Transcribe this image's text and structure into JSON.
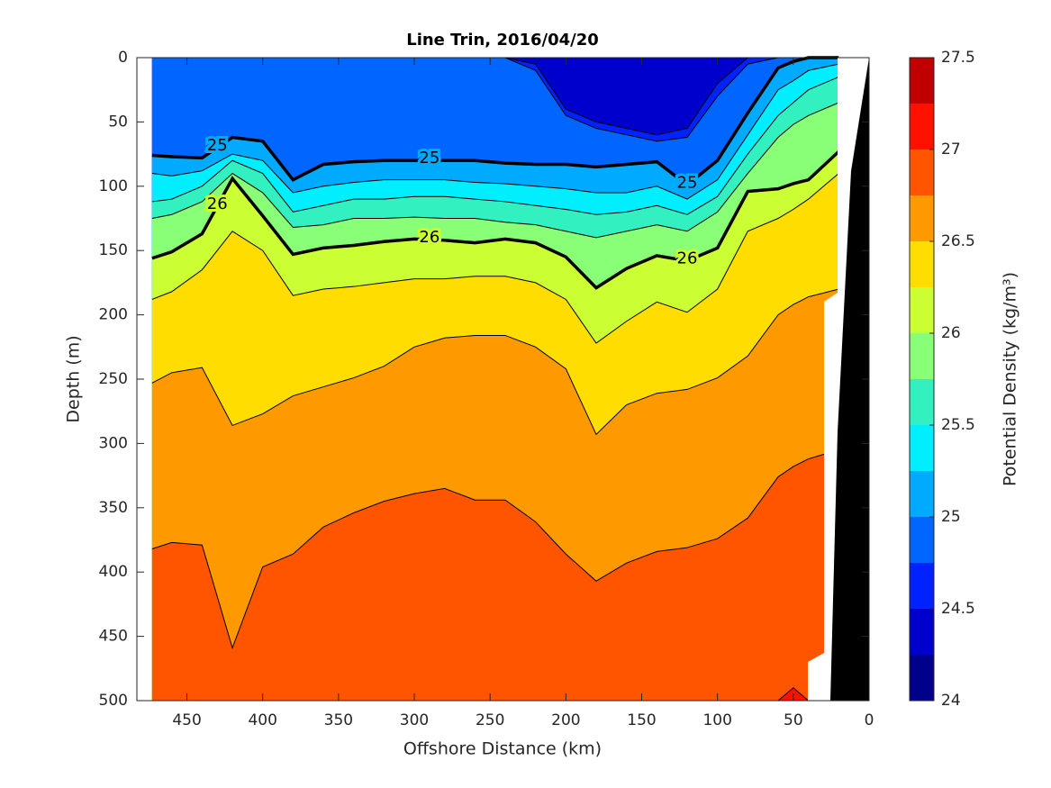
{
  "chart_data": {
    "type": "contour",
    "title": "Line Trin, 2016/04/20",
    "xlabel": "Offshore Distance (km)",
    "ylabel": "Depth (m)",
    "colorbar_label": "Potential Density (kg/m³)",
    "xlim": [
      483,
      0
    ],
    "xticks": [
      450,
      400,
      350,
      300,
      250,
      200,
      150,
      100,
      50,
      0
    ],
    "ylim": [
      0,
      500
    ],
    "yticks": [
      0,
      50,
      100,
      150,
      200,
      250,
      300,
      350,
      400,
      450,
      500
    ],
    "clim": [
      24,
      27.5
    ],
    "cticks": [
      24,
      24.5,
      25,
      25.5,
      26,
      26.5,
      27,
      27.5
    ],
    "colors": [
      "#00008b",
      "#0000cc",
      "#0022ff",
      "#0066ff",
      "#00aaff",
      "#00eeff",
      "#33f0c0",
      "#88ff77",
      "#ccff33",
      "#ffdd00",
      "#ff9900",
      "#ff5500",
      "#ff1100",
      "#c00000"
    ],
    "x": [
      473,
      460,
      440,
      420,
      400,
      380,
      360,
      340,
      320,
      300,
      280,
      260,
      240,
      220,
      200,
      180,
      160,
      140,
      120,
      100,
      80,
      60,
      50,
      40,
      20
    ],
    "contours": [
      {
        "level": 24.5,
        "depths": [
          0,
          0,
          0,
          0,
          0,
          0,
          0,
          0,
          0,
          0,
          0,
          0,
          0,
          5,
          40,
          50,
          55,
          60,
          55,
          20,
          0,
          0,
          0,
          0,
          0
        ]
      },
      {
        "level": 24.75,
        "depths": [
          0,
          0,
          0,
          0,
          0,
          0,
          0,
          0,
          0,
          0,
          0,
          0,
          0,
          10,
          45,
          55,
          60,
          65,
          62,
          30,
          5,
          0,
          0,
          0,
          0
        ]
      },
      {
        "level": 25,
        "labeled": true,
        "depths": [
          76,
          77,
          78,
          62,
          65,
          95,
          83,
          81,
          80,
          80,
          80,
          80,
          82,
          83,
          83,
          85,
          83,
          81,
          99,
          80,
          43,
          8,
          3,
          0,
          0
        ]
      },
      {
        "level": 25.25,
        "depths": [
          90,
          92,
          88,
          75,
          80,
          105,
          100,
          97,
          95,
          95,
          95,
          97,
          98,
          100,
          102,
          105,
          105,
          100,
          110,
          95,
          60,
          25,
          18,
          10,
          5
        ]
      },
      {
        "level": 25.5,
        "depths": [
          112,
          110,
          100,
          80,
          90,
          120,
          115,
          110,
          110,
          108,
          108,
          110,
          112,
          115,
          118,
          122,
          120,
          115,
          122,
          108,
          75,
          45,
          35,
          25,
          15
        ]
      },
      {
        "level": 25.75,
        "depths": [
          125,
          122,
          112,
          90,
          105,
          132,
          130,
          125,
          125,
          124,
          125,
          125,
          128,
          130,
          135,
          140,
          135,
          130,
          135,
          120,
          90,
          62,
          52,
          45,
          35
        ]
      },
      {
        "level": 26,
        "labeled": true,
        "depths": [
          156,
          151,
          137,
          94,
          123,
          153,
          148,
          146,
          143,
          141,
          142,
          144,
          141,
          144,
          155,
          179,
          164,
          154,
          158,
          148,
          104,
          102,
          98,
          95,
          73
        ]
      },
      {
        "level": 26.25,
        "depths": [
          188,
          182,
          165,
          135,
          150,
          185,
          180,
          178,
          175,
          172,
          172,
          170,
          170,
          175,
          188,
          222,
          205,
          190,
          198,
          180,
          135,
          125,
          118,
          110,
          90
        ]
      },
      {
        "level": 26.5,
        "depths": [
          253,
          245,
          241,
          286,
          277,
          263,
          256,
          249,
          240,
          225,
          218,
          216,
          216,
          225,
          242,
          293,
          270,
          261,
          258,
          249,
          232,
          200,
          192,
          186,
          180
        ]
      },
      {
        "level": 26.75,
        "depths": [
          382,
          377,
          379,
          459,
          396,
          386,
          365,
          354,
          345,
          339,
          335,
          344,
          344,
          361,
          386,
          407,
          393,
          384,
          381,
          374,
          358,
          326,
          318,
          312,
          305
        ]
      },
      {
        "level": 27,
        "depths": [
          500,
          500,
          500,
          500,
          500,
          500,
          500,
          500,
          500,
          500,
          500,
          500,
          500,
          500,
          500,
          500,
          500,
          500,
          500,
          500,
          500,
          500,
          490,
          500,
          500
        ]
      }
    ]
  }
}
